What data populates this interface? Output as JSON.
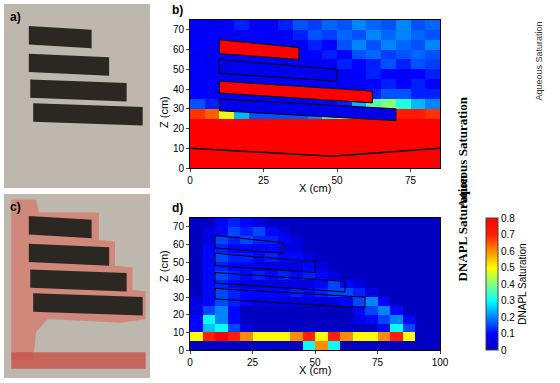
{
  "photos": [
    {
      "label": "a)"
    },
    {
      "label": "c)"
    }
  ],
  "chart_data": [
    {
      "type": "heatmap",
      "label": "b)",
      "row_label": "Aqueous Saturation",
      "colorbar_title": "Aqueous Saturation",
      "xlabel": "X (cm)",
      "ylabel": "Z (cm)",
      "xlim": [
        0,
        85
      ],
      "ylim": [
        0,
        75
      ],
      "xticks": [
        0,
        25,
        50,
        75
      ],
      "yticks": [
        0,
        10,
        20,
        30,
        40,
        50,
        60,
        70
      ],
      "color_range": [
        0,
        1
      ],
      "x": [
        2.5,
        7.5,
        12.5,
        17.5,
        22.5,
        27.5,
        32.5,
        37.5,
        42.5,
        47.5,
        52.5,
        57.5,
        62.5,
        67.5,
        72.5,
        77.5,
        82.5
      ],
      "y": [
        2.5,
        7.5,
        12.5,
        17.5,
        22.5,
        27.5,
        32.5,
        37.5,
        42.5,
        47.5,
        52.5,
        57.5,
        62.5,
        67.5,
        72.5
      ],
      "cells": [
        [
          1,
          1,
          1,
          1,
          1,
          1,
          1,
          1,
          1,
          1,
          1,
          1,
          1,
          1,
          1,
          1,
          1
        ],
        [
          1,
          1,
          1,
          1,
          1,
          1,
          1,
          1,
          1,
          1,
          1,
          1,
          1,
          1,
          1,
          1,
          1
        ],
        [
          1,
          1,
          1,
          1,
          1,
          1,
          1,
          1,
          1,
          1,
          1,
          1,
          1,
          1,
          1,
          1,
          1
        ],
        [
          1,
          1,
          1,
          1,
          1,
          1,
          1,
          1,
          1,
          1,
          1,
          1,
          1,
          1,
          1,
          1,
          1
        ],
        [
          1,
          1,
          1,
          1,
          1,
          1,
          1,
          1,
          1,
          1,
          1,
          1,
          1,
          1,
          1,
          1,
          1
        ],
        [
          0.85,
          0.8,
          0.6,
          0.3,
          0.2,
          0.2,
          0.2,
          0.2,
          0.25,
          0.4,
          0.5,
          0.55,
          0.6,
          0.95,
          0.9,
          0.9,
          0.85
        ],
        [
          0.2,
          0.15,
          0.1,
          0.1,
          0.1,
          0.1,
          0.1,
          0.1,
          0.1,
          0.1,
          0.15,
          0.3,
          0.45,
          0.5,
          0.4,
          0.3,
          0.25
        ],
        [
          0.12,
          0.1,
          0.1,
          0.1,
          0.1,
          0.1,
          0.1,
          0.1,
          0.1,
          0.1,
          0.1,
          0.1,
          0.15,
          0.2,
          0.2,
          0.15,
          0.15
        ],
        [
          0.1,
          0.12,
          0.1,
          0.1,
          0.1,
          0.1,
          0.1,
          0.1,
          0.1,
          0.1,
          0.12,
          0.1,
          0.12,
          0.15,
          0.12,
          0.15,
          0.12
        ],
        [
          0.1,
          0.1,
          0.1,
          0.1,
          0.1,
          0.1,
          0.1,
          0.1,
          0.1,
          0.12,
          0.1,
          0.12,
          0.15,
          0.12,
          0.1,
          0.12,
          0.15
        ],
        [
          0.12,
          0.1,
          0.1,
          0.1,
          0.1,
          0.1,
          0.1,
          0.1,
          0.1,
          0.1,
          0.15,
          0.12,
          0.15,
          0.2,
          0.15,
          0.2,
          0.18
        ],
        [
          0.1,
          0.1,
          0.1,
          0.1,
          0.1,
          0.1,
          0.1,
          0.1,
          0.12,
          0.15,
          0.12,
          0.2,
          0.22,
          0.18,
          0.2,
          0.22,
          0.2
        ],
        [
          0.12,
          0.1,
          0.1,
          0.1,
          0.1,
          0.1,
          0.1,
          0.1,
          0.15,
          0.12,
          0.2,
          0.25,
          0.2,
          0.25,
          0.22,
          0.2,
          0.25
        ],
        [
          0.1,
          0.12,
          0.1,
          0.1,
          0.12,
          0.1,
          0.1,
          0.15,
          0.2,
          0.18,
          0.22,
          0.2,
          0.25,
          0.22,
          0.25,
          0.22,
          0.2
        ],
        [
          0.12,
          0.1,
          0.12,
          0.15,
          0.12,
          0.1,
          0.15,
          0.2,
          0.18,
          0.22,
          0.2,
          0.25,
          0.22,
          0.2,
          0.25,
          0.2,
          0.22
        ]
      ],
      "lenses": [
        [
          [
            10,
            58
          ],
          [
            37,
            55
          ],
          [
            37,
            61
          ],
          [
            10,
            65
          ]
        ],
        [
          [
            10,
            48
          ],
          [
            50,
            44
          ],
          [
            50,
            50
          ],
          [
            10,
            55
          ]
        ],
        [
          [
            10,
            38
          ],
          [
            62,
            33
          ],
          [
            62,
            39
          ],
          [
            10,
            44
          ]
        ],
        [
          [
            10,
            29
          ],
          [
            70,
            24
          ],
          [
            70,
            30
          ],
          [
            10,
            35
          ]
        ]
      ],
      "lens_values": [
        1,
        0.08,
        1,
        0.08
      ],
      "bottom_boundary": {
        "x": [
          0,
          48,
          85
        ],
        "z": [
          10,
          6,
          10
        ]
      }
    },
    {
      "type": "heatmap",
      "label": "d)",
      "row_label": "DNAPL Saturation",
      "colorbar_title": "DNAPL Saturation",
      "xlabel": "X (cm)",
      "ylabel": "Z (cm)",
      "xlim": [
        0,
        100
      ],
      "ylim": [
        0,
        75
      ],
      "xticks": [
        0,
        25,
        50,
        75,
        100
      ],
      "yticks": [
        0,
        10,
        20,
        30,
        40,
        50,
        60,
        70
      ],
      "color_range": [
        0,
        0.8
      ],
      "colorbar_ticks": [
        0,
        0.1,
        0.2,
        0.3,
        0.4,
        0.5,
        0.6,
        0.7,
        0.8
      ],
      "x": [
        2.5,
        7.5,
        12.5,
        17.5,
        22.5,
        27.5,
        32.5,
        37.5,
        42.5,
        47.5,
        52.5,
        57.5,
        62.5,
        67.5,
        72.5,
        77.5,
        82.5,
        87.5,
        92.5,
        97.5
      ],
      "y": [
        2.5,
        7.5,
        12.5,
        17.5,
        22.5,
        27.5,
        32.5,
        37.5,
        42.5,
        47.5,
        52.5,
        57.5,
        62.5,
        67.5,
        72.5
      ],
      "cells": [
        [
          0,
          0,
          0,
          0,
          0,
          0,
          0,
          0,
          0,
          0.3,
          0.6,
          0.3,
          0,
          0,
          0,
          0,
          0,
          0,
          0,
          0
        ],
        [
          0.5,
          0.7,
          0.8,
          0.7,
          0.6,
          0.5,
          0.5,
          0.5,
          0.6,
          0.7,
          0.5,
          0.7,
          0.6,
          0.5,
          0.5,
          0.6,
          0.7,
          0.5,
          0,
          0
        ],
        [
          0.1,
          0.25,
          0.3,
          0.15,
          0.05,
          0,
          0,
          0,
          0,
          0,
          0,
          0,
          0,
          0,
          0,
          0.1,
          0.3,
          0.15,
          0,
          0
        ],
        [
          0.1,
          0.3,
          0.2,
          0.1,
          0,
          0,
          0,
          0,
          0,
          0,
          0,
          0,
          0,
          0.05,
          0.1,
          0.15,
          0.2,
          0.1,
          0,
          0
        ],
        [
          0.05,
          0.15,
          0.2,
          0.1,
          0,
          0,
          0,
          0,
          0,
          0,
          0,
          0,
          0,
          0.1,
          0.15,
          0.2,
          0.1,
          0,
          0,
          0
        ],
        [
          0.05,
          0.1,
          0.15,
          0.12,
          0.1,
          0.05,
          0.05,
          0.05,
          0.05,
          0.05,
          0.05,
          0.05,
          0.1,
          0.15,
          0.2,
          0.1,
          0,
          0,
          0,
          0
        ],
        [
          0,
          0.1,
          0.15,
          0.12,
          0.1,
          0.1,
          0.1,
          0.1,
          0.12,
          0.1,
          0.12,
          0.15,
          0.15,
          0.12,
          0.05,
          0,
          0,
          0,
          0,
          0
        ],
        [
          0,
          0.1,
          0.12,
          0.1,
          0.05,
          0.05,
          0.05,
          0.05,
          0.05,
          0.05,
          0.1,
          0.15,
          0.1,
          0.05,
          0,
          0,
          0,
          0,
          0,
          0
        ],
        [
          0,
          0.1,
          0.15,
          0.12,
          0.1,
          0.12,
          0.1,
          0.12,
          0.1,
          0.12,
          0.1,
          0.05,
          0,
          0,
          0,
          0,
          0,
          0,
          0,
          0
        ],
        [
          0,
          0.1,
          0.12,
          0.1,
          0.1,
          0.05,
          0.05,
          0.05,
          0.05,
          0.1,
          0.05,
          0,
          0,
          0,
          0,
          0,
          0,
          0,
          0,
          0
        ],
        [
          0,
          0.1,
          0.15,
          0.12,
          0.12,
          0.1,
          0.12,
          0.1,
          0.1,
          0.05,
          0,
          0,
          0,
          0,
          0,
          0,
          0,
          0,
          0,
          0
        ],
        [
          0,
          0.1,
          0.12,
          0.1,
          0.1,
          0.1,
          0.1,
          0.05,
          0.05,
          0,
          0,
          0,
          0,
          0,
          0,
          0,
          0,
          0,
          0,
          0
        ],
        [
          0,
          0.05,
          0.15,
          0.12,
          0.15,
          0.12,
          0.12,
          0.1,
          0.05,
          0,
          0,
          0,
          0,
          0,
          0,
          0,
          0,
          0,
          0,
          0
        ],
        [
          0,
          0.05,
          0.1,
          0.15,
          0.12,
          0.15,
          0.1,
          0.05,
          0,
          0,
          0,
          0,
          0,
          0,
          0,
          0,
          0,
          0,
          0,
          0
        ],
        [
          0,
          0,
          0.1,
          0.12,
          0.1,
          0.05,
          0,
          0,
          0,
          0,
          0,
          0,
          0,
          0,
          0,
          0,
          0,
          0,
          0,
          0
        ]
      ],
      "lenses": [
        [
          [
            10,
            58
          ],
          [
            37,
            55
          ],
          [
            37,
            61
          ],
          [
            10,
            65
          ]
        ],
        [
          [
            10,
            48
          ],
          [
            50,
            44
          ],
          [
            50,
            50
          ],
          [
            10,
            55
          ]
        ],
        [
          [
            10,
            38
          ],
          [
            62,
            33
          ],
          [
            62,
            39
          ],
          [
            10,
            44
          ]
        ],
        [
          [
            10,
            29
          ],
          [
            70,
            24
          ],
          [
            70,
            30
          ],
          [
            10,
            35
          ]
        ]
      ]
    }
  ]
}
